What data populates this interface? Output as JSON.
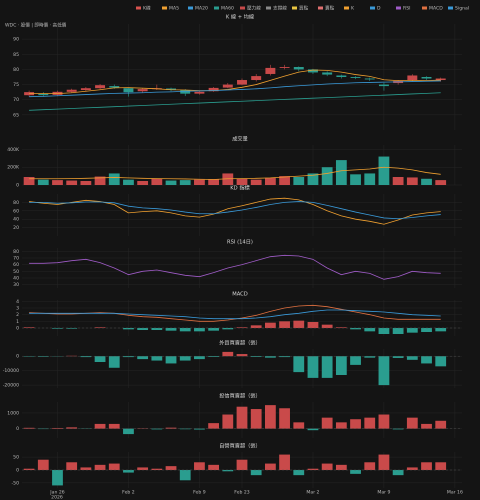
{
  "info": "WDC · 股價 | 即時價 · 高低價",
  "legend": [
    {
      "name": "K線",
      "color": "#d9534f"
    },
    {
      "name": "MA5",
      "color": "#f0a030"
    },
    {
      "name": "MA20",
      "color": "#3a9ad9"
    },
    {
      "name": "MA60",
      "color": "#2a9d8f"
    },
    {
      "name": "壓力線",
      "color": "#c94a4a"
    },
    {
      "name": "支撐線",
      "color": "#8a8a8a"
    },
    {
      "name": "買點",
      "color": "#e8c440"
    },
    {
      "name": "賣點",
      "color": "#e07070"
    },
    {
      "name": "K",
      "color": "#f0a030"
    },
    {
      "name": "D",
      "color": "#3a9ad9"
    },
    {
      "name": "RSI",
      "color": "#a05cc8"
    },
    {
      "name": "MACD",
      "color": "#e07040"
    },
    {
      "name": "Signal",
      "color": "#3a9ad9"
    }
  ],
  "up_color": "#c94a4a",
  "down_color": "#2a9d8f",
  "x_axis": {
    "xlim": [
      -0.5,
      30.5
    ],
    "xticks": [
      {
        "value": 2,
        "label": "Jan 26"
      },
      {
        "value": 7,
        "label": "Feb 2"
      },
      {
        "value": 12,
        "label": "Feb 9"
      },
      {
        "value": 15,
        "label": "Feb 23"
      },
      {
        "value": 20,
        "label": "Mar 2"
      },
      {
        "value": 25,
        "label": "Mar 9"
      },
      {
        "value": 30,
        "label": "Mar 16"
      }
    ],
    "year": "2026"
  },
  "chart_data": [
    {
      "type": "candlestick",
      "title": "K 線 + 均線",
      "ylim": [
        60,
        95
      ],
      "yticks": [
        65,
        70,
        75,
        80,
        85,
        90
      ],
      "open": [
        71.5,
        72,
        71.6,
        72.6,
        73.2,
        73.8,
        74.5,
        73.8,
        72.8,
        73.5,
        73.7,
        73.2,
        72,
        72.8,
        74,
        75,
        76.5,
        78.5,
        80.5,
        80.8,
        80,
        79,
        78,
        77.5,
        77,
        75,
        75.5,
        76.5,
        77.5,
        76.5
      ],
      "high": [
        73,
        72.5,
        73,
        73.6,
        74.2,
        75.2,
        75,
        74,
        73.8,
        75,
        74,
        73.5,
        73,
        74.2,
        75.5,
        77,
        78.5,
        81.5,
        81.5,
        81,
        80.2,
        79.4,
        78.3,
        77.8,
        77.3,
        75.6,
        76.5,
        78.4,
        77.8,
        77.3
      ],
      "low": [
        71,
        71,
        71.2,
        72.2,
        72.8,
        73.5,
        73.6,
        71,
        72.3,
        73.2,
        72.8,
        71.2,
        71.7,
        72.6,
        73.8,
        74.8,
        76,
        78,
        80,
        79.4,
        78.5,
        77.8,
        77,
        76.8,
        76.2,
        73,
        75,
        76.2,
        76.5,
        76
      ],
      "close": [
        72.5,
        71.5,
        72.6,
        73.3,
        73.8,
        74.8,
        74,
        72.5,
        73.5,
        73.8,
        73.2,
        72,
        72.6,
        73.9,
        75,
        76.5,
        77.8,
        80.5,
        80.8,
        80,
        79,
        78.3,
        77.5,
        77.2,
        76.7,
        74.5,
        76.2,
        78,
        77,
        77
      ],
      "series": [
        {
          "name": "MA5",
          "color": "#f0a030",
          "values": [
            72,
            72,
            72,
            72.3,
            72.8,
            73.3,
            73.9,
            74,
            73.8,
            73.6,
            73.3,
            73.2,
            73,
            73,
            73.4,
            74.1,
            75,
            76.4,
            77.8,
            79.1,
            79.8,
            79.7,
            79.1,
            78.3,
            77.7,
            76.6,
            76.3,
            76.3,
            76.3,
            76.5
          ]
        },
        {
          "name": "MA20",
          "color": "#3a9ad9",
          "values": [
            71,
            71.1,
            71.3,
            71.5,
            71.7,
            71.9,
            72.1,
            72.2,
            72.3,
            72.5,
            72.6,
            72.8,
            72.9,
            73,
            73.2,
            73.4,
            73.6,
            73.9,
            74.3,
            74.6,
            74.9,
            75.2,
            75.4,
            75.6,
            75.7,
            75.8,
            75.9,
            76,
            76.1,
            76.2
          ]
        },
        {
          "name": "MA60",
          "color": "#2a9d8f",
          "values": [
            66.5,
            66.7,
            66.9,
            67.1,
            67.3,
            67.5,
            67.7,
            67.9,
            68.1,
            68.3,
            68.5,
            68.7,
            68.9,
            69.1,
            69.3,
            69.5,
            69.7,
            69.9,
            70.1,
            70.3,
            70.5,
            70.7,
            70.9,
            71.1,
            71.3,
            71.5,
            71.7,
            71.9,
            72.1,
            72.3
          ]
        }
      ]
    },
    {
      "type": "bar",
      "title": "成交量",
      "ylim": [
        0,
        450000
      ],
      "yticks": [
        0,
        {
          "value": 200000,
          "label": "200K"
        },
        {
          "value": 400000,
          "label": "400K"
        }
      ],
      "values": [
        90000,
        60000,
        55000,
        50000,
        45000,
        95000,
        130000,
        60000,
        45000,
        70000,
        50000,
        55000,
        60000,
        65000,
        130000,
        70000,
        60000,
        80000,
        100000,
        90000,
        130000,
        200000,
        280000,
        120000,
        130000,
        320000,
        90000,
        85000,
        70000,
        55000
      ],
      "series": [
        {
          "color": "#f0a030",
          "values": [
            70000,
            70000,
            70000,
            72000,
            75000,
            80000,
            85000,
            80000,
            75000,
            72000,
            70000,
            68000,
            65000,
            62000,
            70000,
            72000,
            75000,
            80000,
            90000,
            100000,
            110000,
            130000,
            160000,
            170000,
            180000,
            200000,
            190000,
            170000,
            140000,
            120000
          ]
        }
      ]
    },
    {
      "type": "line",
      "title": "KD 指標",
      "ylim": [
        0,
        100
      ],
      "yticks": [
        20,
        40,
        60,
        80
      ],
      "series": [
        {
          "name": "K",
          "color": "#f0a030",
          "values": [
            82,
            78,
            75,
            80,
            85,
            82,
            75,
            55,
            58,
            60,
            55,
            48,
            45,
            52,
            65,
            72,
            80,
            88,
            90,
            86,
            75,
            60,
            48,
            40,
            35,
            28,
            38,
            50,
            55,
            58
          ]
        },
        {
          "name": "D",
          "color": "#3a9ad9",
          "values": [
            80,
            80,
            78,
            79,
            81,
            81,
            79,
            71,
            67,
            65,
            62,
            57,
            53,
            53,
            57,
            62,
            68,
            75,
            80,
            82,
            80,
            73,
            65,
            57,
            50,
            43,
            41,
            44,
            48,
            51
          ]
        }
      ]
    },
    {
      "type": "line",
      "title": "RSI (14日)",
      "ylim": [
        25,
        85
      ],
      "yticks": [
        30,
        40,
        50,
        60,
        70,
        80
      ],
      "series": [
        {
          "name": "RSI",
          "color": "#a05cc8",
          "values": [
            62,
            62,
            63,
            66,
            68,
            63,
            55,
            45,
            50,
            52,
            48,
            44,
            42,
            48,
            55,
            60,
            66,
            72,
            74,
            73,
            68,
            55,
            45,
            50,
            47,
            38,
            42,
            50,
            48,
            47
          ]
        }
      ]
    },
    {
      "type": "bar",
      "title": "MACD",
      "ylim": [
        -1.2,
        4.2
      ],
      "yticks": [
        0,
        1,
        2,
        3,
        4
      ],
      "values": [
        0.1,
        0,
        -0.1,
        -0.1,
        0,
        0.1,
        0,
        -0.2,
        -0.3,
        -0.3,
        -0.4,
        -0.5,
        -0.5,
        -0.4,
        -0.2,
        0.1,
        0.4,
        0.8,
        1.0,
        1.1,
        0.9,
        0.5,
        0.1,
        -0.2,
        -0.5,
        -0.9,
        -0.9,
        -0.7,
        -0.6,
        -0.5
      ],
      "series": [
        {
          "name": "MACD",
          "color": "#e07040",
          "values": [
            2.3,
            2.2,
            2.1,
            2.1,
            2.2,
            2.3,
            2.2,
            1.9,
            1.7,
            1.6,
            1.4,
            1.2,
            1.0,
            1.0,
            1.2,
            1.5,
            1.9,
            2.5,
            3.0,
            3.3,
            3.4,
            3.2,
            2.8,
            2.4,
            2.0,
            1.5,
            1.3,
            1.3,
            1.3,
            1.3
          ]
        },
        {
          "name": "Signal",
          "color": "#3a9ad9",
          "values": [
            2.2,
            2.2,
            2.2,
            2.2,
            2.2,
            2.2,
            2.2,
            2.1,
            2.0,
            1.9,
            1.8,
            1.7,
            1.5,
            1.4,
            1.4,
            1.4,
            1.5,
            1.7,
            2.0,
            2.2,
            2.5,
            2.7,
            2.7,
            2.6,
            2.5,
            2.4,
            2.2,
            2.0,
            1.9,
            1.8
          ]
        }
      ]
    },
    {
      "type": "bar",
      "title": "外資買賣超（張）",
      "ylim": [
        -22000,
        5000
      ],
      "yticks": [
        -20000,
        -10000,
        0
      ],
      "values": [
        -300,
        -400,
        -200,
        300,
        -600,
        -4000,
        -8000,
        -600,
        -2000,
        -3000,
        -5000,
        -3000,
        -2000,
        -500,
        3000,
        1500,
        -500,
        -1000,
        -600,
        -11000,
        -15000,
        -15000,
        -13000,
        -6000,
        -1000,
        -20000,
        -1200,
        -2500,
        -5000,
        -7000
      ]
    },
    {
      "type": "bar",
      "title": "投信買賣超（張）",
      "ylim": [
        -600,
        1700
      ],
      "yticks": [
        0,
        1000
      ],
      "values": [
        50,
        -30,
        40,
        80,
        -20,
        300,
        300,
        -350,
        20,
        -50,
        60,
        -40,
        -60,
        350,
        900,
        1400,
        1250,
        1500,
        1300,
        400,
        -100,
        700,
        400,
        600,
        700,
        900,
        -50,
        700,
        300,
        500
      ]
    },
    {
      "type": "bar",
      "title": "自營買賣超（張）",
      "ylim": [
        -70,
        70
      ],
      "yticks": [
        -50,
        0,
        50
      ],
      "values": [
        5,
        40,
        -60,
        30,
        10,
        20,
        25,
        -10,
        10,
        5,
        15,
        -40,
        30,
        20,
        -5,
        40,
        -20,
        25,
        60,
        -20,
        5,
        25,
        20,
        -15,
        30,
        60,
        -20,
        10,
        30,
        30
      ]
    }
  ]
}
